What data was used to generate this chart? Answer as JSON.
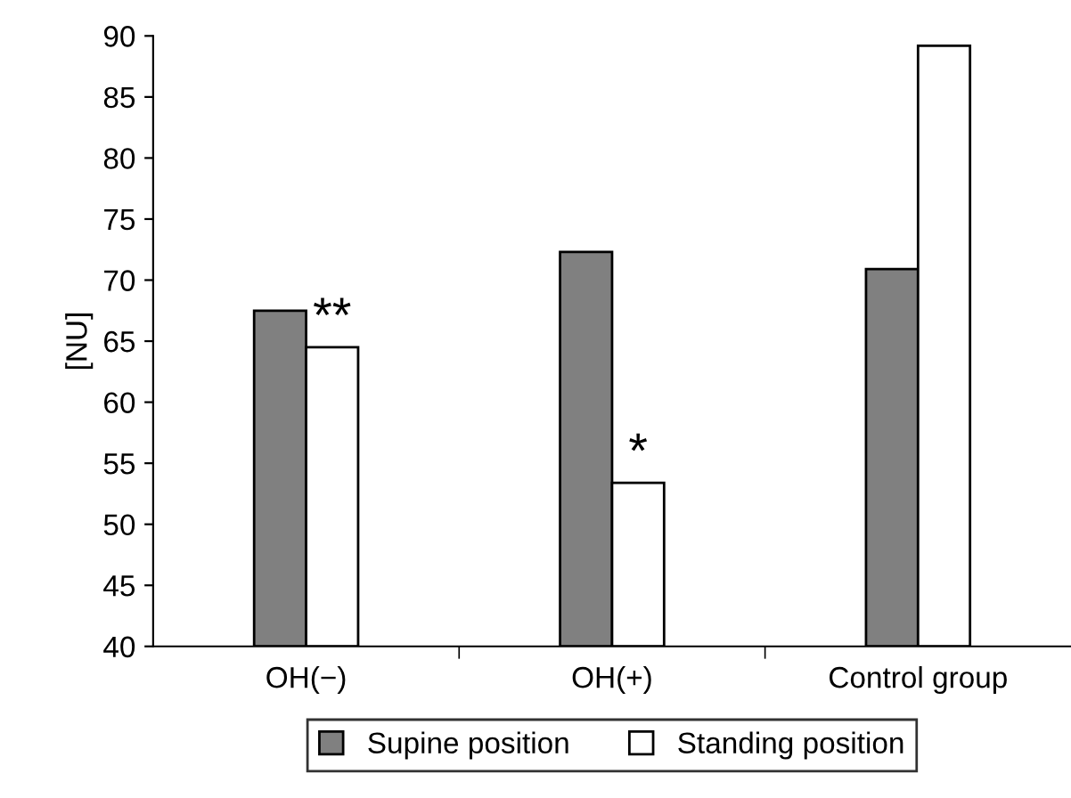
{
  "chart_data": {
    "type": "bar",
    "ylabel": "[NU]",
    "categories": [
      "OH(−)",
      "OH(+)",
      "Control group"
    ],
    "series": [
      {
        "name": "Supine position",
        "color": "#808080",
        "values": [
          67.5,
          72.3,
          70.9
        ]
      },
      {
        "name": "Standing position",
        "color": "#ffffff",
        "values": [
          64.5,
          53.4,
          89.2
        ]
      }
    ],
    "ylim": [
      40,
      90
    ],
    "yticks": [
      40,
      45,
      50,
      55,
      60,
      65,
      70,
      75,
      80,
      85,
      90
    ],
    "grid": false,
    "legend": "bottom",
    "annotations": [
      {
        "text": "**",
        "x": "OH(−)",
        "y": 64.5
      },
      {
        "text": "*",
        "x": "OH(+)",
        "y": 53.4
      }
    ]
  }
}
